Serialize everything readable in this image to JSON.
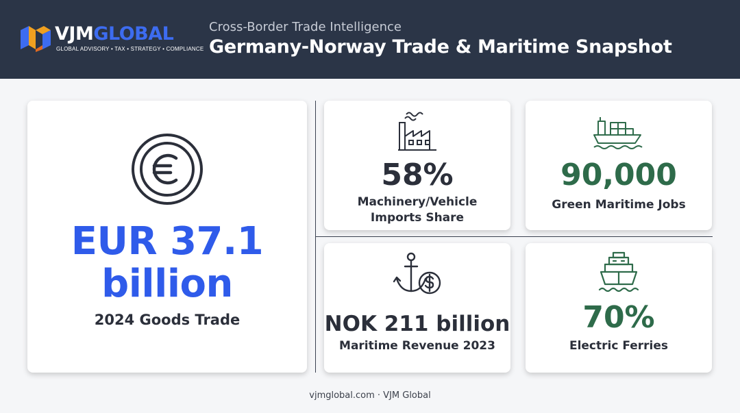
{
  "header": {
    "logo": {
      "word_part1": "VJM",
      "word_part2": "GLOBAL",
      "tagline": "GLOBAL ADVISORY • TAX • STRATEGY • COMPLIANCE"
    },
    "kicker": "Cross-Border Trade Intelligence",
    "title": "Germany-Norway Trade & Maritime Snapshot"
  },
  "main_card": {
    "icon": "euro-coin-icon",
    "value_line1": "EUR 37.1",
    "value_line2": "billion",
    "label": "2024 Goods Trade"
  },
  "cards": [
    {
      "icon": "factory-icon",
      "value": "58%",
      "label_line1": "Machinery/Vehicle",
      "label_line2": "Imports Share"
    },
    {
      "icon": "cargo-ship-icon",
      "value": "90,000",
      "label_line1": "Green Maritime Jobs",
      "label_line2": ""
    },
    {
      "icon": "anchor-coin-icon",
      "value": "NOK 211 billion",
      "label_line1": "Maritime Revenue 2023",
      "label_line2": ""
    },
    {
      "icon": "ferry-icon",
      "value": "70%",
      "label_line1": "Electric Ferries",
      "label_line2": ""
    }
  ],
  "footer": "vjmglobal.com · VJM Global",
  "colors": {
    "header_bg": "#2b3547",
    "accent_blue": "#2f5bea",
    "accent_green": "#2e6b4a",
    "text_dark": "#2b2f3a"
  }
}
